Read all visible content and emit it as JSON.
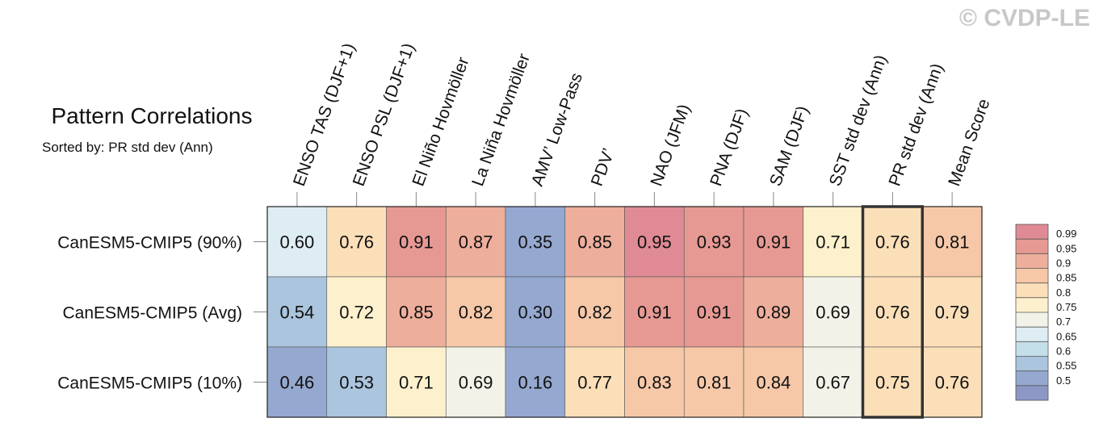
{
  "watermark": "© CVDP-LE",
  "chart_data": {
    "type": "heatmap",
    "title": "Pattern Correlations",
    "subtitle": "Sorted by: PR std dev (Ann)",
    "columns": [
      "ENSO TAS (DJF+1)",
      "ENSO PSL (DJF+1)",
      "El Niño Hovmöller",
      "La Niña Hovmöller",
      "AMV’ Low-Pass",
      "PDV’",
      "NAO (JFM)",
      "PNA (DJF)",
      "SAM (DJF)",
      "SST std dev (Ann)",
      "PR std dev (Ann)",
      "Mean Score"
    ],
    "rows": [
      "CanESM5-CMIP5 (90%)",
      "CanESM5-CMIP5 (Avg)",
      "CanESM5-CMIP5 (10%)"
    ],
    "values": [
      [
        0.6,
        0.76,
        0.91,
        0.87,
        0.35,
        0.85,
        0.95,
        0.93,
        0.91,
        0.71,
        0.76,
        0.81
      ],
      [
        0.54,
        0.72,
        0.85,
        0.82,
        0.3,
        0.82,
        0.91,
        0.91,
        0.89,
        0.69,
        0.76,
        0.79
      ],
      [
        0.46,
        0.53,
        0.71,
        0.69,
        0.16,
        0.77,
        0.83,
        0.81,
        0.84,
        0.67,
        0.75,
        0.76
      ]
    ],
    "highlighted_column": "PR std dev (Ann)",
    "colorbar": {
      "ticks": [
        "0.99",
        "0.95",
        "0.9",
        "0.85",
        "0.8",
        "0.75",
        "0.7",
        "0.65",
        "0.6",
        "0.55",
        "0.5"
      ],
      "colors_top_to_bottom": [
        "#df8a95",
        "#e69993",
        "#eeae9c",
        "#f6c8a8",
        "#fbdfb9",
        "#fdf1cd",
        "#f2f2e8",
        "#deedf3",
        "#c4dfea",
        "#aac5dd",
        "#95a8d0",
        "#8c97c6"
      ]
    },
    "colors": {
      "ge_0.95": "#df8a95",
      "0.90-0.95": "#e69993",
      "0.85-0.90": "#eeae9c",
      "0.80-0.85": "#f6c8a8",
      "0.75-0.80": "#fbdfb9",
      "0.70-0.75": "#fdf1cd",
      "0.65-0.70": "#f2f2e8",
      "0.60-0.65": "#deedf3",
      "0.55-0.60": "#c4dfea",
      "0.50-0.55": "#aac5dd",
      "lt_0.50": "#95a8d0"
    }
  }
}
